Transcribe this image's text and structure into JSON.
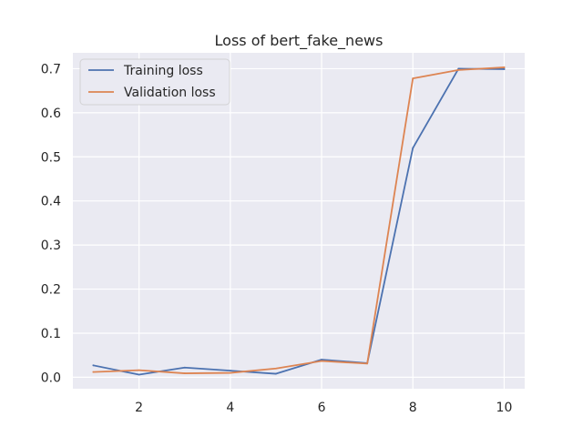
{
  "chart_data": {
    "type": "line",
    "title": "Loss of bert_fake_news",
    "xlabel": "",
    "ylabel": "",
    "x": [
      1,
      2,
      3,
      4,
      5,
      6,
      7,
      8,
      9,
      10
    ],
    "xlim": [
      0.55,
      10.45
    ],
    "ylim": [
      -0.026,
      0.736
    ],
    "xticks": [
      2,
      4,
      6,
      8,
      10
    ],
    "yticks": [
      0.0,
      0.1,
      0.2,
      0.3,
      0.4,
      0.5,
      0.6,
      0.7
    ],
    "ytick_labels": [
      "0.0",
      "0.1",
      "0.2",
      "0.3",
      "0.4",
      "0.5",
      "0.6",
      "0.7"
    ],
    "xtick_labels": [
      "2",
      "4",
      "6",
      "8",
      "10"
    ],
    "grid": true,
    "legend_position": "top-left",
    "series": [
      {
        "name": "Training loss",
        "color": "#4c72b0",
        "values": [
          0.027,
          0.006,
          0.022,
          0.015,
          0.008,
          0.04,
          0.032,
          0.52,
          0.7,
          0.699
        ]
      },
      {
        "name": "Validation loss",
        "color": "#dd8452",
        "values": [
          0.012,
          0.016,
          0.009,
          0.01,
          0.02,
          0.037,
          0.031,
          0.678,
          0.697,
          0.703
        ]
      }
    ],
    "colors": {
      "plot_background": "#eaeaf2",
      "grid": "#ffffff",
      "text": "#262626"
    }
  }
}
